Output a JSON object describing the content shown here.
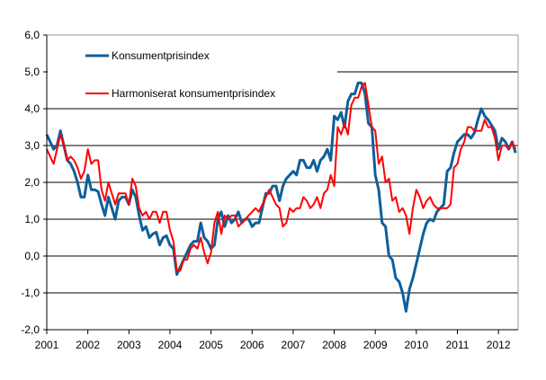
{
  "chart_data": {
    "type": "line",
    "title": "",
    "xlabel": "",
    "ylabel": "",
    "ylim": [
      -2.0,
      6.0
    ],
    "y_ticks": [
      "6,0",
      "5,0",
      "4,0",
      "3,0",
      "2,0",
      "1,0",
      "0,0",
      "-1,0",
      "-2,0"
    ],
    "x_ticks": [
      "2001",
      "2002",
      "2003",
      "2004",
      "2005",
      "2006",
      "2007",
      "2008",
      "2009",
      "2010",
      "2011",
      "2012"
    ],
    "x_range": [
      "2001-01",
      "2012-06"
    ],
    "frequency": "monthly",
    "grid": "horizontal",
    "legend_position": "top-left",
    "series": [
      {
        "name": "Konsumentprisindex",
        "color": "#0F5F9A",
        "values": [
          3.3,
          3.1,
          2.9,
          3.0,
          3.4,
          3.0,
          2.6,
          2.5,
          2.3,
          2.0,
          1.6,
          1.6,
          2.2,
          1.8,
          1.8,
          1.75,
          1.4,
          1.1,
          1.6,
          1.3,
          1.0,
          1.5,
          1.6,
          1.6,
          1.4,
          1.8,
          1.6,
          1.1,
          0.7,
          0.8,
          0.5,
          0.6,
          0.65,
          0.3,
          0.5,
          0.55,
          0.3,
          0.2,
          -0.5,
          -0.3,
          -0.1,
          0.1,
          0.3,
          0.4,
          0.4,
          0.9,
          0.5,
          0.4,
          0.2,
          0.3,
          1.0,
          1.2,
          0.8,
          1.1,
          0.9,
          1.0,
          1.2,
          0.9,
          1.0,
          1.0,
          0.8,
          0.9,
          0.9,
          1.3,
          1.7,
          1.7,
          1.9,
          1.9,
          1.5,
          1.9,
          2.1,
          2.2,
          2.3,
          2.2,
          2.6,
          2.6,
          2.4,
          2.4,
          2.6,
          2.3,
          2.6,
          2.7,
          2.9,
          2.6,
          3.8,
          3.7,
          3.9,
          3.5,
          4.2,
          4.4,
          4.4,
          4.7,
          4.7,
          4.4,
          3.6,
          3.5,
          2.2,
          1.8,
          0.9,
          0.8,
          0.0,
          -0.1,
          -0.6,
          -0.7,
          -1.0,
          -1.5,
          -0.9,
          -0.6,
          -0.2,
          0.2,
          0.6,
          0.9,
          1.0,
          0.95,
          1.2,
          1.3,
          1.4,
          2.3,
          2.4,
          2.8,
          3.1,
          3.2,
          3.3,
          3.3,
          3.2,
          3.35,
          3.7,
          4.0,
          3.8,
          3.7,
          3.55,
          3.4,
          2.9,
          3.2,
          3.1,
          2.9,
          3.1,
          2.8
        ]
      },
      {
        "name": "Harmoniserat konsumentprisindex",
        "color": "#FF0000",
        "values": [
          2.9,
          2.7,
          2.5,
          2.9,
          3.3,
          3.0,
          2.6,
          2.7,
          2.6,
          2.4,
          2.1,
          2.3,
          2.9,
          2.5,
          2.6,
          2.6,
          1.8,
          1.5,
          2.0,
          1.7,
          1.4,
          1.7,
          1.7,
          1.7,
          1.4,
          2.1,
          1.9,
          1.3,
          1.1,
          1.2,
          1.0,
          1.2,
          1.2,
          0.9,
          1.2,
          1.2,
          0.7,
          0.4,
          -0.4,
          -0.4,
          -0.1,
          -0.1,
          0.2,
          0.3,
          0.2,
          0.5,
          0.1,
          -0.2,
          0.1,
          0.9,
          1.2,
          0.6,
          1.1,
          1.0,
          1.1,
          1.1,
          0.8,
          0.9,
          1.0,
          1.1,
          1.2,
          1.3,
          1.2,
          1.4,
          1.6,
          1.8,
          1.6,
          1.4,
          1.3,
          0.8,
          0.9,
          1.3,
          1.2,
          1.3,
          1.3,
          1.6,
          1.5,
          1.3,
          1.4,
          1.6,
          1.3,
          1.7,
          1.8,
          2.2,
          1.9,
          3.5,
          3.3,
          3.6,
          3.3,
          4.1,
          4.3,
          4.3,
          4.6,
          4.7,
          4.1,
          3.5,
          3.4,
          2.5,
          2.7,
          2.0,
          2.1,
          1.5,
          1.6,
          1.2,
          1.3,
          1.1,
          0.6,
          1.3,
          1.8,
          1.6,
          1.3,
          1.5,
          1.6,
          1.4,
          1.3,
          1.3,
          1.3,
          1.3,
          1.4,
          2.4,
          2.5,
          2.9,
          3.1,
          3.5,
          3.5,
          3.4,
          3.4,
          3.4,
          3.7,
          3.5,
          3.5,
          3.2,
          2.6,
          3.0,
          3.0,
          2.9,
          3.1,
          2.9
        ]
      }
    ]
  }
}
